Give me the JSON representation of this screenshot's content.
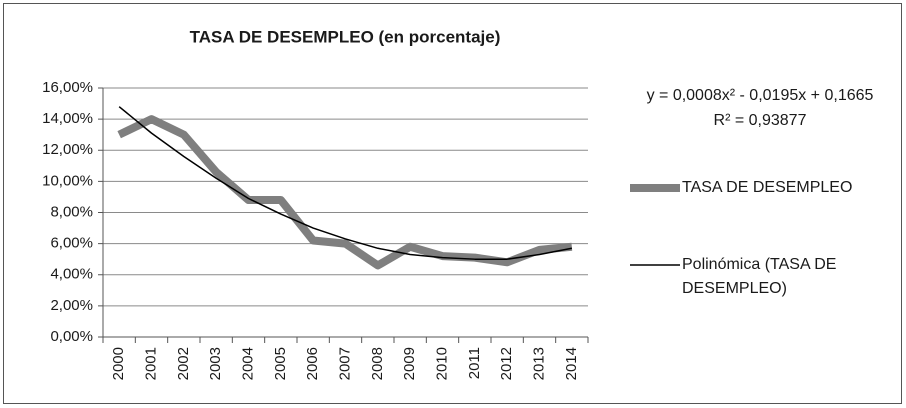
{
  "chart_data": {
    "type": "line",
    "title": "TASA DE DESEMPLEO (en porcentaje)",
    "categories": [
      "2000",
      "2001",
      "2002",
      "2003",
      "2004",
      "2005",
      "2006",
      "2007",
      "2008",
      "2009",
      "2010",
      "2011",
      "2012",
      "2013",
      "2014"
    ],
    "series": [
      {
        "name": "TASA DE DESEMPLEO",
        "color": "#7f7f7f",
        "values": [
          13.0,
          14.0,
          13.0,
          10.6,
          8.8,
          8.8,
          6.2,
          6.0,
          4.6,
          5.8,
          5.2,
          5.1,
          4.8,
          5.6,
          5.8
        ]
      },
      {
        "name": "Polinómica (TASA DE DESEMPLEO)",
        "color": "#000000",
        "values": [
          14.8,
          13.1,
          11.6,
          10.2,
          8.9,
          7.9,
          7.0,
          6.3,
          5.7,
          5.3,
          5.1,
          5.0,
          5.0,
          5.3,
          5.7
        ]
      }
    ],
    "annotations": [
      "y = 0,0008x² - 0,0195x + 0,1665",
      "R² = 0,93877"
    ],
    "ylim": [
      0,
      16
    ],
    "yticks": [
      {
        "value": 0,
        "label": "0,00%"
      },
      {
        "value": 2,
        "label": "2,00%"
      },
      {
        "value": 4,
        "label": "4,00%"
      },
      {
        "value": 6,
        "label": "6,00%"
      },
      {
        "value": 8,
        "label": "8,00%"
      },
      {
        "value": 10,
        "label": "10,00%"
      },
      {
        "value": 12,
        "label": "12,00%"
      },
      {
        "value": 14,
        "label": "14,00%"
      },
      {
        "value": 16,
        "label": "16,00%"
      }
    ],
    "grid": true,
    "legend": "right"
  }
}
